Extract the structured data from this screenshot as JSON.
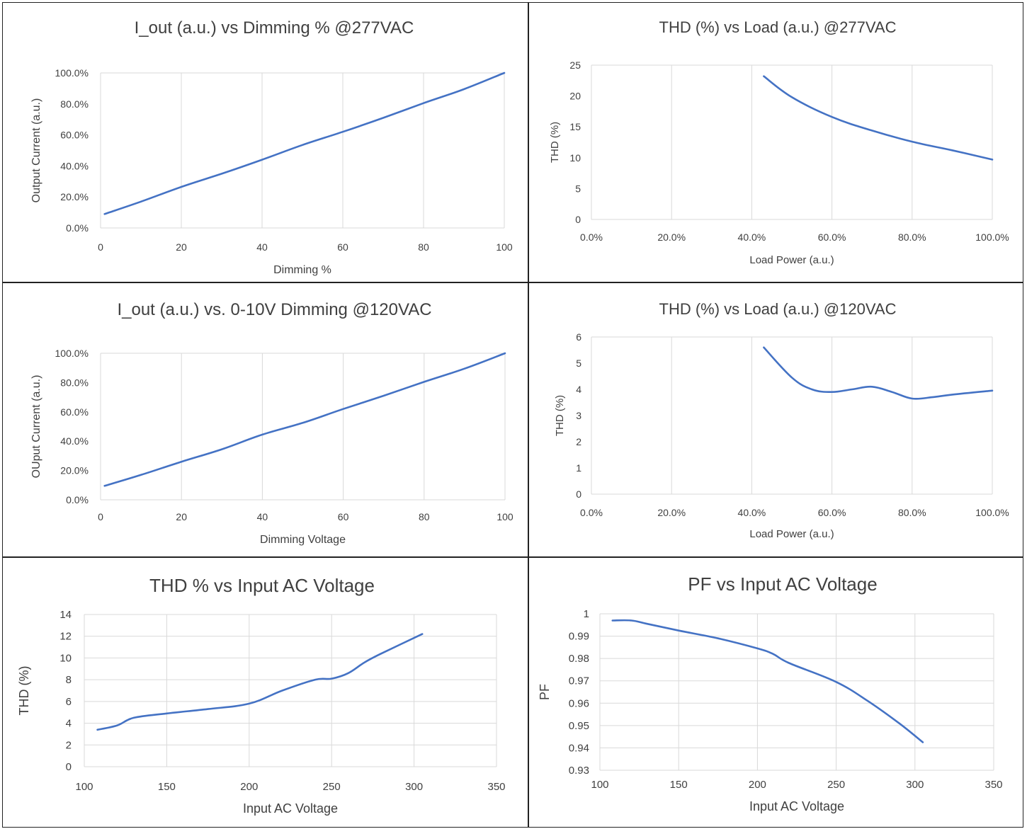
{
  "chart_data": [
    {
      "type": "line",
      "title": "I_out (a.u.) vs Dimming % @277VAC",
      "xlabel": "Dimming %",
      "ylabel": "Output Current (a.u.)",
      "xlim": [
        0,
        100
      ],
      "ylim": [
        0,
        1
      ],
      "xticks": [
        "0",
        "20",
        "40",
        "60",
        "80",
        "100"
      ],
      "yticks": [
        "0.0%",
        "20.0%",
        "40.0%",
        "60.0%",
        "80.0%",
        "100.0%"
      ],
      "grid": "vertical",
      "x": [
        1,
        10,
        20,
        30,
        40,
        50,
        60,
        70,
        80,
        90,
        100
      ],
      "y": [
        0.09,
        0.17,
        0.265,
        0.35,
        0.44,
        0.535,
        0.62,
        0.71,
        0.805,
        0.895,
        1.0
      ]
    },
    {
      "type": "line",
      "title": "THD (%) vs Load (a.u.) @277VAC",
      "xlabel": "Load Power (a.u.)",
      "ylabel": "THD (%)",
      "xlim": [
        0,
        1
      ],
      "ylim": [
        0,
        25
      ],
      "xticks": [
        "0.0%",
        "20.0%",
        "40.0%",
        "60.0%",
        "80.0%",
        "100.0%"
      ],
      "yticks": [
        "0",
        "5",
        "10",
        "15",
        "20",
        "25"
      ],
      "grid": "vertical",
      "x": [
        0.43,
        0.5,
        0.6,
        0.7,
        0.8,
        0.9,
        1.0
      ],
      "y": [
        23.2,
        19.8,
        16.6,
        14.4,
        12.6,
        11.2,
        9.7
      ]
    },
    {
      "type": "line",
      "title": "I_out (a.u.) vs. 0-10V Dimming @120VAC",
      "xlabel": "Dimming Voltage",
      "ylabel": "OUput Current (a.u.)",
      "xlim": [
        0,
        100
      ],
      "ylim": [
        0,
        1
      ],
      "xticks": [
        "0",
        "20",
        "40",
        "60",
        "80",
        "100"
      ],
      "yticks": [
        "0.0%",
        "20.0%",
        "40.0%",
        "60.0%",
        "80.0%",
        "100.0%"
      ],
      "grid": "vertical",
      "x": [
        1,
        10,
        20,
        30,
        40,
        50,
        60,
        70,
        80,
        90,
        100
      ],
      "y": [
        0.095,
        0.17,
        0.26,
        0.345,
        0.445,
        0.525,
        0.62,
        0.71,
        0.805,
        0.895,
        1.0
      ]
    },
    {
      "type": "line",
      "title": "THD (%) vs Load (a.u.) @120VAC",
      "xlabel": "Load Power (a.u.)",
      "ylabel": "THD (%)",
      "xlim": [
        0,
        1
      ],
      "ylim": [
        0,
        6
      ],
      "xticks": [
        "0.0%",
        "20.0%",
        "40.0%",
        "60.0%",
        "80.0%",
        "100.0%"
      ],
      "yticks": [
        "0",
        "1",
        "2",
        "3",
        "4",
        "5",
        "6"
      ],
      "grid": "vertical",
      "x": [
        0.43,
        0.5,
        0.55,
        0.6,
        0.65,
        0.7,
        0.75,
        0.8,
        0.85,
        0.9,
        1.0
      ],
      "y": [
        5.6,
        4.45,
        4.0,
        3.9,
        4.0,
        4.1,
        3.9,
        3.65,
        3.7,
        3.8,
        3.95
      ]
    },
    {
      "type": "line",
      "title": "THD % vs Input AC Voltage",
      "xlabel": "Input AC Voltage",
      "ylabel": "THD (%)",
      "xlim": [
        100,
        350
      ],
      "ylim": [
        0,
        14
      ],
      "xticks": [
        "100",
        "150",
        "200",
        "250",
        "300",
        "350"
      ],
      "yticks": [
        "0",
        "2",
        "4",
        "6",
        "8",
        "10",
        "12",
        "14"
      ],
      "grid": "both",
      "x": [
        108,
        120,
        130,
        150,
        175,
        200,
        220,
        240,
        250,
        260,
        270,
        280,
        305
      ],
      "y": [
        3.4,
        3.8,
        4.5,
        4.9,
        5.3,
        5.8,
        7.0,
        8.0,
        8.1,
        8.6,
        9.6,
        10.4,
        12.2
      ]
    },
    {
      "type": "line",
      "title": "PF vs Input AC Voltage",
      "xlabel": "Input AC Voltage",
      "ylabel": "PF",
      "xlim": [
        100,
        350
      ],
      "ylim": [
        0.93,
        1
      ],
      "xticks": [
        "100",
        "150",
        "200",
        "250",
        "300",
        "350"
      ],
      "yticks": [
        "0.93",
        "0.94",
        "0.95",
        "0.96",
        "0.97",
        "0.98",
        "0.99",
        "1"
      ],
      "grid": "both",
      "x": [
        108,
        120,
        130,
        150,
        175,
        200,
        210,
        220,
        250,
        270,
        290,
        305
      ],
      "y": [
        0.997,
        0.997,
        0.9955,
        0.9925,
        0.989,
        0.9845,
        0.982,
        0.978,
        0.9695,
        0.961,
        0.951,
        0.9425
      ]
    }
  ]
}
